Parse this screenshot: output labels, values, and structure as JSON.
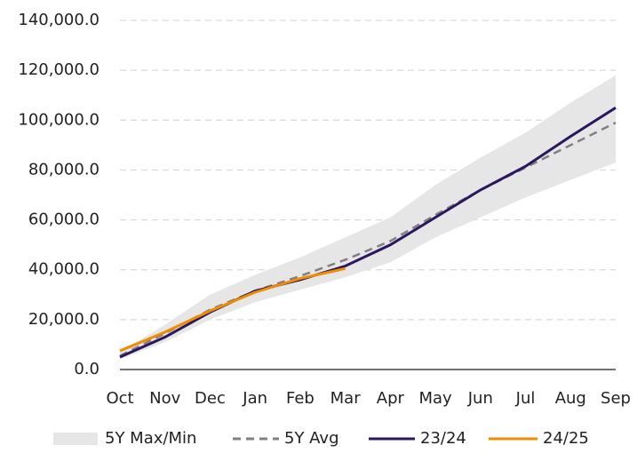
{
  "chart_data": {
    "type": "line",
    "categories": [
      "Oct",
      "Nov",
      "Dec",
      "Jan",
      "Feb",
      "Mar",
      "Apr",
      "May",
      "Jun",
      "Jul",
      "Aug",
      "Sep"
    ],
    "ylim": [
      0,
      140000
    ],
    "yticks": [
      {
        "value": 0,
        "label": "0.0"
      },
      {
        "value": 20000,
        "label": "20,000.0"
      },
      {
        "value": 40000,
        "label": "40,000.0"
      },
      {
        "value": 60000,
        "label": "60,000.0"
      },
      {
        "value": 80000,
        "label": "80,000.0"
      },
      {
        "value": 100000,
        "label": "100,000.0"
      },
      {
        "value": 120000,
        "label": "120,000.0"
      },
      {
        "value": 140000,
        "label": "140,000.0"
      }
    ],
    "grid": true,
    "legend": "bottom",
    "series": [
      {
        "name": "5Y Max/Min",
        "color": "#e6e6e6",
        "style": "band",
        "upper": [
          7000,
          18000,
          30000,
          38000,
          45000,
          53000,
          61000,
          74000,
          85000,
          95000,
          107000,
          118000
        ],
        "lower": [
          4000,
          11000,
          20000,
          27000,
          32000,
          37000,
          43000,
          53000,
          61000,
          69000,
          76000,
          83000
        ]
      },
      {
        "name": "5Y Avg",
        "color": "#808080",
        "style": "dashed",
        "values": [
          5500,
          14500,
          24000,
          31500,
          37500,
          44000,
          51500,
          62000,
          72000,
          81000,
          90000,
          99000
        ]
      },
      {
        "name": "23/24",
        "color": "#2a1760",
        "style": "solid",
        "values": [
          5000,
          13000,
          23000,
          31500,
          36000,
          41500,
          50000,
          61000,
          72000,
          81500,
          93500,
          105000
        ]
      },
      {
        "name": "24/25",
        "color": "#f08c00",
        "style": "solid",
        "values": [
          7500,
          15000,
          23500,
          31000,
          36500,
          40500,
          null,
          null,
          null,
          null,
          null,
          null
        ]
      }
    ]
  }
}
